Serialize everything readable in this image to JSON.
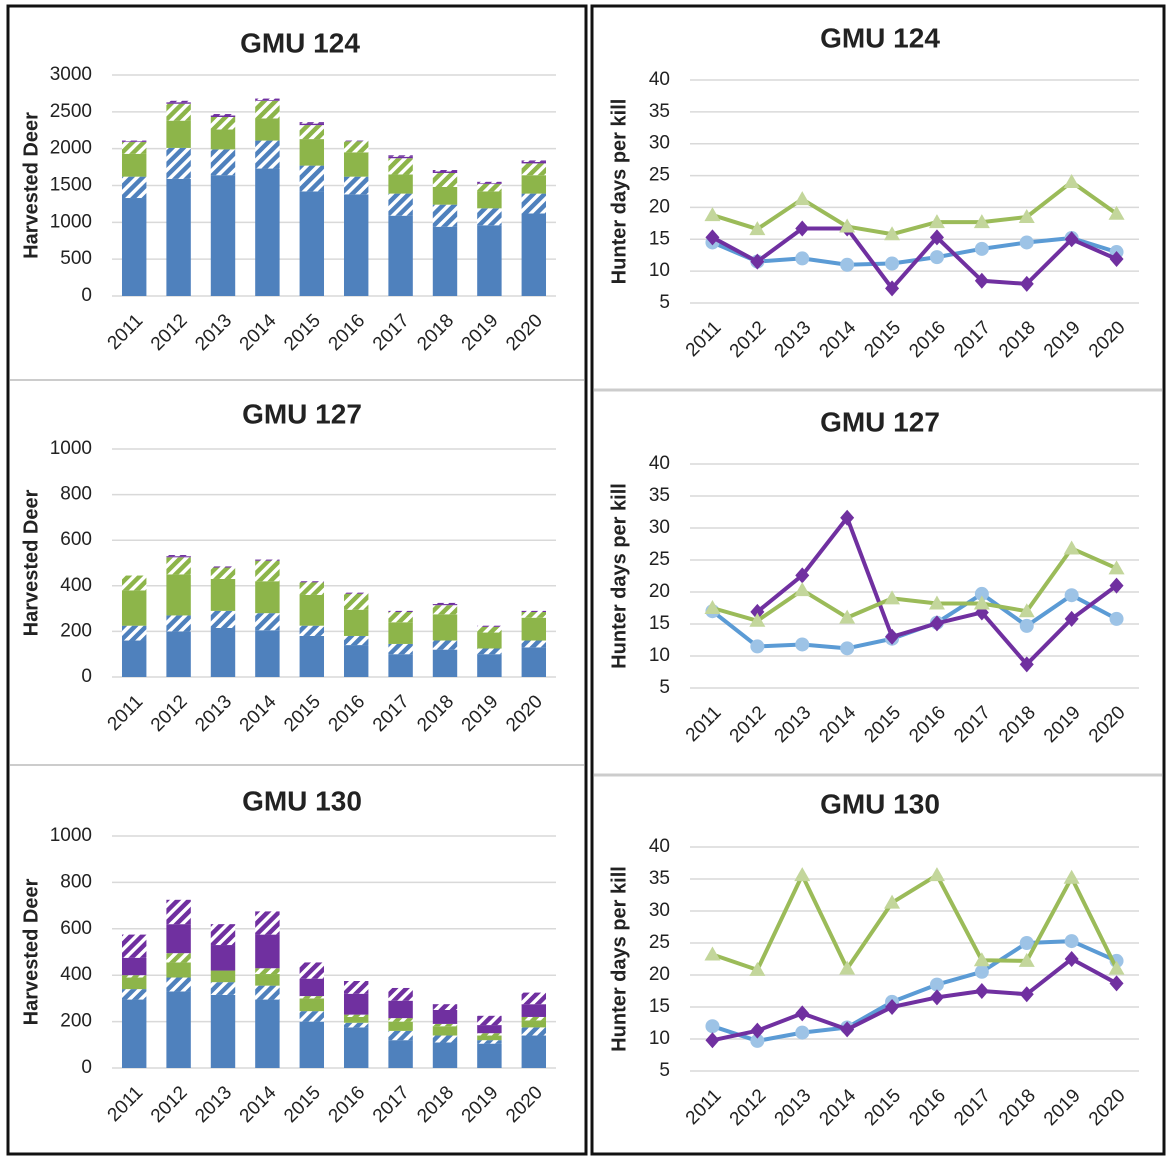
{
  "chart_data": [
    {
      "type": "bar",
      "stacked": true,
      "title": "GMU 124",
      "y_label": "Harvested Deer",
      "categories": [
        "2011",
        "2012",
        "2013",
        "2014",
        "2015",
        "2016",
        "2017",
        "2018",
        "2019",
        "2020"
      ],
      "ylim": [
        0,
        3000
      ],
      "yticks": [
        0,
        500,
        1000,
        1500,
        2000,
        2500,
        3000
      ],
      "grid": true,
      "series": [
        {
          "color": "#4f81bd",
          "hatch": false,
          "values": [
            1330,
            1590,
            1640,
            1730,
            1420,
            1380,
            1090,
            940,
            960,
            1120
          ]
        },
        {
          "color": "#4f81bd",
          "hatch": true,
          "values": [
            290,
            420,
            350,
            380,
            350,
            240,
            300,
            300,
            230,
            270
          ]
        },
        {
          "color": "#8db54a",
          "hatch": false,
          "values": [
            310,
            370,
            270,
            300,
            360,
            330,
            260,
            240,
            230,
            250
          ]
        },
        {
          "color": "#8db54a",
          "hatch": true,
          "values": [
            160,
            230,
            170,
            240,
            190,
            150,
            220,
            190,
            100,
            160
          ]
        },
        {
          "color": "#7030a0",
          "hatch": false,
          "values": [
            10,
            20,
            20,
            10,
            20,
            0,
            20,
            20,
            10,
            20
          ]
        },
        {
          "color": "#7030a0",
          "hatch": true,
          "values": [
            10,
            20,
            20,
            20,
            20,
            10,
            20,
            20,
            20,
            20
          ]
        }
      ]
    },
    {
      "type": "bar",
      "stacked": true,
      "title": "GMU 127",
      "y_label": "Harvested Deer",
      "categories": [
        "2011",
        "2012",
        "2013",
        "2014",
        "2015",
        "2016",
        "2017",
        "2018",
        "2019",
        "2020"
      ],
      "ylim": [
        0,
        1000
      ],
      "yticks": [
        0,
        200,
        400,
        600,
        800,
        1000
      ],
      "grid": true,
      "series": [
        {
          "color": "#4f81bd",
          "hatch": false,
          "values": [
            160,
            200,
            215,
            205,
            180,
            140,
            100,
            120,
            100,
            130
          ]
        },
        {
          "color": "#4f81bd",
          "hatch": true,
          "values": [
            65,
            70,
            75,
            75,
            45,
            40,
            45,
            40,
            25,
            30
          ]
        },
        {
          "color": "#8db54a",
          "hatch": false,
          "values": [
            155,
            180,
            140,
            140,
            135,
            115,
            95,
            115,
            70,
            100
          ]
        },
        {
          "color": "#8db54a",
          "hatch": true,
          "values": [
            65,
            75,
            50,
            90,
            55,
            70,
            45,
            40,
            25,
            25
          ]
        },
        {
          "color": "#7030a0",
          "hatch": false,
          "values": [
            0,
            5,
            0,
            0,
            0,
            0,
            0,
            5,
            0,
            0
          ]
        },
        {
          "color": "#7030a0",
          "hatch": true,
          "values": [
            0,
            5,
            5,
            5,
            5,
            5,
            5,
            5,
            5,
            5
          ]
        }
      ]
    },
    {
      "type": "bar",
      "stacked": true,
      "title": "GMU 130",
      "y_label": "Harvested Deer",
      "categories": [
        "2011",
        "2012",
        "2013",
        "2014",
        "2015",
        "2016",
        "2017",
        "2018",
        "2019",
        "2020"
      ],
      "ylim": [
        0,
        1000
      ],
      "yticks": [
        0,
        200,
        400,
        600,
        800,
        1000
      ],
      "grid": true,
      "series": [
        {
          "color": "#4f81bd",
          "hatch": false,
          "values": [
            295,
            330,
            315,
            295,
            200,
            175,
            120,
            110,
            105,
            140
          ]
        },
        {
          "color": "#4f81bd",
          "hatch": true,
          "values": [
            45,
            60,
            55,
            60,
            45,
            20,
            40,
            30,
            15,
            35
          ]
        },
        {
          "color": "#8db54a",
          "hatch": false,
          "values": [
            50,
            65,
            50,
            50,
            55,
            25,
            40,
            40,
            20,
            30
          ]
        },
        {
          "color": "#8db54a",
          "hatch": true,
          "values": [
            10,
            40,
            0,
            25,
            10,
            10,
            15,
            10,
            10,
            15
          ]
        },
        {
          "color": "#7030a0",
          "hatch": false,
          "values": [
            75,
            125,
            110,
            145,
            75,
            90,
            75,
            60,
            35,
            55
          ]
        },
        {
          "color": "#7030a0",
          "hatch": true,
          "values": [
            100,
            105,
            90,
            100,
            70,
            55,
            55,
            25,
            40,
            50
          ]
        }
      ]
    },
    {
      "type": "line",
      "title": "GMU 124",
      "y_label": "Hunter days per kill",
      "categories": [
        "2011",
        "2012",
        "2013",
        "2014",
        "2015",
        "2016",
        "2017",
        "2018",
        "2019",
        "2020"
      ],
      "ylim": [
        5,
        40
      ],
      "yticks": [
        5,
        10,
        15,
        20,
        25,
        30,
        35,
        40
      ],
      "grid": true,
      "series": [
        {
          "color": "#5b9bd5",
          "marker_color": "#9dc3e6",
          "marker": "circle",
          "values": [
            14.5,
            11.5,
            12,
            11,
            11.2,
            12.2,
            13.5,
            14.5,
            15.2,
            13
          ]
        },
        {
          "color": "#7030a0",
          "marker_color": "#7030a0",
          "marker": "diamond",
          "values": [
            15.3,
            11.5,
            16.7,
            16.7,
            7.3,
            15.3,
            8.5,
            8,
            15,
            11.9
          ]
        },
        {
          "color": "#9bbb59",
          "marker_color": "#c3d69b",
          "marker": "triangle",
          "values": [
            18.8,
            16.6,
            21.3,
            17,
            15.8,
            17.7,
            17.7,
            18.5,
            24,
            19
          ]
        }
      ]
    },
    {
      "type": "line",
      "title": "GMU 127",
      "y_label": "Hunter days per kill",
      "categories": [
        "2011",
        "2012",
        "2013",
        "2014",
        "2015",
        "2016",
        "2017",
        "2018",
        "2019",
        "2020"
      ],
      "ylim": [
        5,
        40
      ],
      "yticks": [
        5,
        10,
        15,
        20,
        25,
        30,
        35,
        40
      ],
      "grid": true,
      "series": [
        {
          "color": "#5b9bd5",
          "marker_color": "#9dc3e6",
          "marker": "circle",
          "values": [
            17,
            11.5,
            11.8,
            11.2,
            12.7,
            15.2,
            19.7,
            14.7,
            19.5,
            15.8
          ]
        },
        {
          "color": "#7030a0",
          "marker_color": "#7030a0",
          "marker": "diamond",
          "values": [
            null,
            16.9,
            22.6,
            31.6,
            13,
            15.1,
            16.8,
            8.7,
            15.8,
            21
          ]
        },
        {
          "color": "#9bbb59",
          "marker_color": "#c3d69b",
          "marker": "triangle",
          "values": [
            17.5,
            15.5,
            20.3,
            16,
            19,
            18.2,
            18.2,
            17,
            26.8,
            23.7
          ]
        }
      ]
    },
    {
      "type": "line",
      "title": "GMU 130",
      "y_label": "Hunter days per kill",
      "categories": [
        "2011",
        "2012",
        "2013",
        "2014",
        "2015",
        "2016",
        "2017",
        "2018",
        "2019",
        "2020"
      ],
      "ylim": [
        5,
        40
      ],
      "yticks": [
        5,
        10,
        15,
        20,
        25,
        30,
        35,
        40
      ],
      "grid": true,
      "series": [
        {
          "color": "#5b9bd5",
          "marker_color": "#9dc3e6",
          "marker": "circle",
          "values": [
            12,
            9.7,
            11,
            11.8,
            15.8,
            18.5,
            20.5,
            25,
            25.3,
            22.2
          ]
        },
        {
          "color": "#7030a0",
          "marker_color": "#7030a0",
          "marker": "diamond",
          "values": [
            9.8,
            11.3,
            14,
            11.5,
            15,
            16.5,
            17.5,
            17,
            22.5,
            18.7
          ]
        },
        {
          "color": "#9bbb59",
          "marker_color": "#c3d69b",
          "marker": "triangle",
          "values": [
            23.2,
            20.8,
            35.6,
            21,
            31.3,
            35.6,
            22.3,
            22.2,
            35.2,
            21
          ]
        }
      ]
    }
  ]
}
